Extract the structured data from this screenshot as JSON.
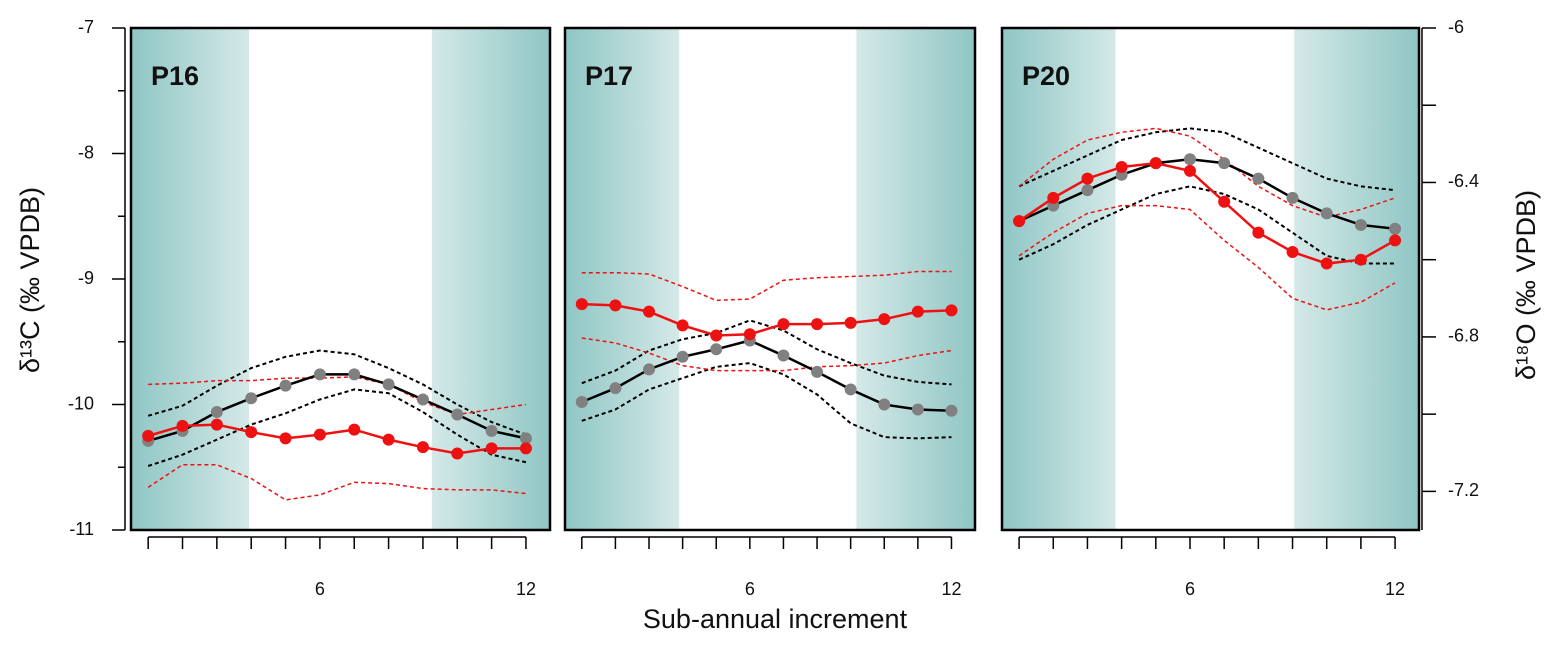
{
  "chart_data": [
    {
      "type": "line",
      "title": "P16",
      "ylabel": "δ¹³C (‰ VPDB)",
      "x": [
        1,
        2,
        3,
        4,
        5,
        6,
        7,
        8,
        9,
        10,
        11,
        12
      ],
      "xlim": [
        0.5,
        12.7
      ],
      "xticks": [
        6,
        12
      ],
      "x_minor_ticks": [
        1,
        2,
        3,
        4,
        5,
        6,
        7,
        8,
        9,
        10,
        11,
        12
      ],
      "ylim": [
        -11,
        -7
      ],
      "yticks": [
        -11,
        -10,
        -9,
        -8,
        -7
      ],
      "y_minor_ticks": [
        -10.5,
        -9.5,
        -8.5,
        -7.5
      ],
      "shaded_ranges": [
        [
          0.5,
          3.94
        ],
        [
          9.26,
          12.7
        ]
      ],
      "series": [
        {
          "color": "#000000",
          "style": "dashed",
          "values": [
            -10.09,
            -10.01,
            -9.85,
            -9.71,
            -9.62,
            -9.57,
            -9.6,
            -9.71,
            -9.84,
            -10.0,
            -10.14,
            -10.24
          ]
        },
        {
          "color": "#000000",
          "style": "dashed",
          "values": [
            -10.49,
            -10.4,
            -10.28,
            -10.16,
            -10.07,
            -9.96,
            -9.88,
            -9.91,
            -10.06,
            -10.24,
            -10.4,
            -10.46
          ]
        },
        {
          "color": "#ee1111",
          "style": "dashed",
          "values": [
            -9.84,
            -9.83,
            -9.81,
            -9.81,
            -9.79,
            -9.79,
            -9.78,
            -9.84,
            -9.98,
            -10.08,
            -10.04,
            -10.0
          ]
        },
        {
          "color": "#ee1111",
          "style": "dashed",
          "values": [
            -10.66,
            -10.48,
            -10.48,
            -10.59,
            -10.76,
            -10.72,
            -10.62,
            -10.63,
            -10.67,
            -10.68,
            -10.68,
            -10.71
          ]
        },
        {
          "color": "#000000",
          "marker_color": "#808080",
          "style": "solid",
          "values": [
            -10.29,
            -10.21,
            -10.06,
            -9.95,
            -9.85,
            -9.76,
            -9.76,
            -9.84,
            -9.96,
            -10.08,
            -10.21,
            -10.27
          ]
        },
        {
          "color": "#ee1111",
          "marker_color": "#ee1111",
          "style": "solid",
          "values": [
            -10.25,
            -10.17,
            -10.16,
            -10.22,
            -10.27,
            -10.24,
            -10.2,
            -10.28,
            -10.34,
            -10.39,
            -10.35,
            -10.35
          ]
        }
      ]
    },
    {
      "type": "line",
      "title": "P17",
      "xlabel": "Sub-annual increment",
      "x": [
        1,
        2,
        3,
        4,
        5,
        6,
        7,
        8,
        9,
        10,
        11,
        12
      ],
      "xlim": [
        0.5,
        12.7
      ],
      "xticks": [
        6,
        12
      ],
      "x_minor_ticks": [
        1,
        2,
        3,
        4,
        5,
        6,
        7,
        8,
        9,
        10,
        11,
        12
      ],
      "ylim": [
        -11,
        -7
      ],
      "shaded_ranges": [
        [
          0.5,
          3.9
        ],
        [
          9.17,
          12.7
        ]
      ],
      "series": [
        {
          "color": "#000000",
          "style": "dashed",
          "values": [
            -9.83,
            -9.73,
            -9.57,
            -9.48,
            -9.43,
            -9.33,
            -9.41,
            -9.56,
            -9.67,
            -9.77,
            -9.82,
            -9.84
          ]
        },
        {
          "color": "#000000",
          "style": "dashed",
          "values": [
            -10.13,
            -10.04,
            -9.88,
            -9.79,
            -9.7,
            -9.67,
            -9.76,
            -9.92,
            -10.15,
            -10.26,
            -10.27,
            -10.26
          ]
        },
        {
          "color": "#ee1111",
          "style": "dashed",
          "values": [
            -8.95,
            -8.95,
            -8.96,
            -9.06,
            -9.17,
            -9.16,
            -9.01,
            -8.99,
            -8.98,
            -8.97,
            -8.94,
            -8.94
          ]
        },
        {
          "color": "#ee1111",
          "style": "dashed",
          "values": [
            -9.47,
            -9.51,
            -9.59,
            -9.69,
            -9.73,
            -9.73,
            -9.73,
            -9.7,
            -9.69,
            -9.67,
            -9.61,
            -9.57
          ]
        },
        {
          "color": "#000000",
          "marker_color": "#808080",
          "style": "solid",
          "values": [
            -9.98,
            -9.87,
            -9.72,
            -9.62,
            -9.56,
            -9.49,
            -9.61,
            -9.74,
            -9.88,
            -10.0,
            -10.04,
            -10.05
          ]
        },
        {
          "color": "#ee1111",
          "marker_color": "#ee1111",
          "style": "solid",
          "values": [
            -9.2,
            -9.21,
            -9.26,
            -9.37,
            -9.45,
            -9.44,
            -9.36,
            -9.36,
            -9.35,
            -9.32,
            -9.26,
            -9.25
          ]
        }
      ]
    },
    {
      "type": "line",
      "title": "P20",
      "y2label": "δ¹⁸O (‰ VPDB)",
      "x": [
        1,
        2,
        3,
        4,
        5,
        6,
        7,
        8,
        9,
        10,
        11,
        12
      ],
      "xlim": [
        0.5,
        12.7
      ],
      "xticks": [
        6,
        12
      ],
      "x_minor_ticks": [
        1,
        2,
        3,
        4,
        5,
        6,
        7,
        8,
        9,
        10,
        11,
        12
      ],
      "y2lim": [
        -7.3,
        -6
      ],
      "y2ticks": [
        -7.2,
        -6.8,
        -6.4,
        -6
      ],
      "y2_minor_ticks": [
        -7.0,
        -6.6,
        -6.2
      ],
      "shaded_ranges": [
        [
          0.5,
          3.82
        ],
        [
          9.05,
          12.7
        ]
      ],
      "series": [
        {
          "axis": "y2",
          "color": "#000000",
          "style": "dashed",
          "values": [
            -6.41,
            -6.37,
            -6.33,
            -6.29,
            -6.27,
            -6.26,
            -6.27,
            -6.31,
            -6.35,
            -6.39,
            -6.41,
            -6.42
          ]
        },
        {
          "axis": "y2",
          "color": "#000000",
          "style": "dashed",
          "values": [
            -6.6,
            -6.56,
            -6.51,
            -6.47,
            -6.43,
            -6.41,
            -6.43,
            -6.47,
            -6.53,
            -6.59,
            -6.61,
            -6.61
          ]
        },
        {
          "axis": "y2",
          "color": "#ee1111",
          "style": "dashed",
          "values": [
            -6.41,
            -6.34,
            -6.29,
            -6.27,
            -6.26,
            -6.28,
            -6.34,
            -6.41,
            -6.46,
            -6.49,
            -6.47,
            -6.44
          ]
        },
        {
          "axis": "y2",
          "color": "#ee1111",
          "style": "dashed",
          "values": [
            -6.59,
            -6.53,
            -6.48,
            -6.46,
            -6.46,
            -6.47,
            -6.55,
            -6.62,
            -6.7,
            -6.73,
            -6.71,
            -6.66
          ]
        },
        {
          "axis": "y2",
          "color": "#000000",
          "marker_color": "#808080",
          "style": "solid",
          "values": [
            -6.5,
            -6.46,
            -6.42,
            -6.38,
            -6.35,
            -6.34,
            -6.35,
            -6.39,
            -6.44,
            -6.48,
            -6.51,
            -6.52
          ]
        },
        {
          "axis": "y2",
          "color": "#ee1111",
          "marker_color": "#ee1111",
          "style": "solid",
          "values": [
            -6.5,
            -6.44,
            -6.39,
            -6.36,
            -6.35,
            -6.37,
            -6.45,
            -6.53,
            -6.58,
            -6.61,
            -6.6,
            -6.55
          ]
        }
      ]
    }
  ]
}
